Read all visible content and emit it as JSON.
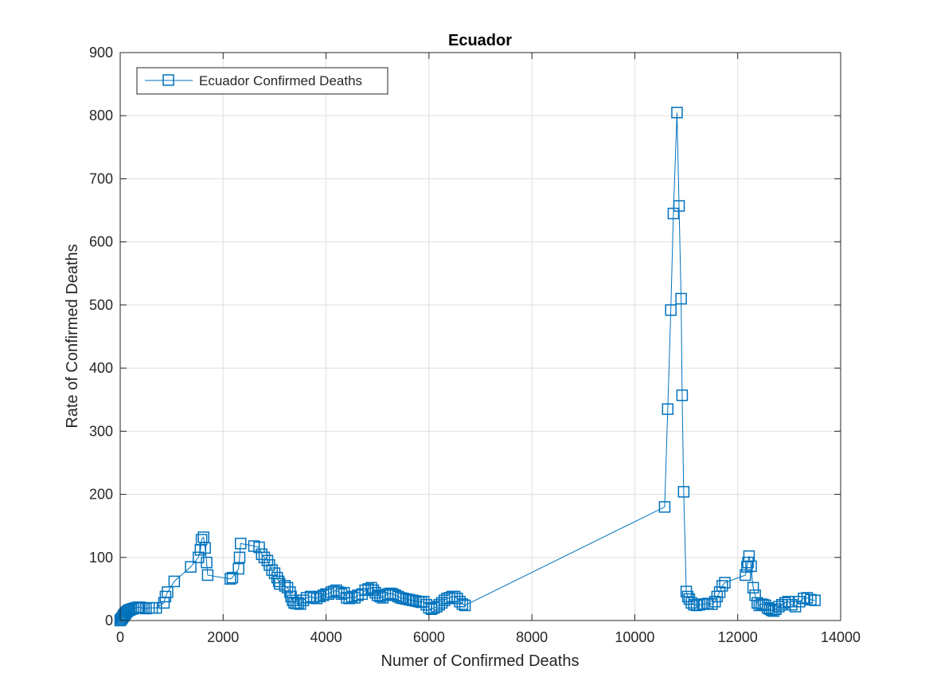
{
  "chart_data": {
    "type": "line",
    "title": "Ecuador",
    "xlabel": "Numer of Confirmed Deaths",
    "ylabel": "Rate of Confirmed Deaths",
    "xlim": [
      0,
      14000
    ],
    "ylim": [
      0,
      900
    ],
    "xticks": [
      0,
      2000,
      4000,
      6000,
      8000,
      10000,
      12000,
      14000
    ],
    "yticks": [
      0,
      100,
      200,
      300,
      400,
      500,
      600,
      700,
      800,
      900
    ],
    "xtick_labels": [
      "0",
      "2000",
      "4000",
      "6000",
      "8000",
      "10000",
      "12000",
      "14000"
    ],
    "ytick_labels": [
      "0",
      "100",
      "200",
      "300",
      "400",
      "500",
      "600",
      "700",
      "800",
      "900"
    ],
    "grid": true,
    "legend_position": "top-left",
    "series": [
      {
        "name": "Ecuador Confirmed Deaths",
        "color": "#0072BD",
        "marker": "square",
        "points": [
          [
            0,
            0
          ],
          [
            15,
            2
          ],
          [
            30,
            3
          ],
          [
            45,
            5
          ],
          [
            60,
            7
          ],
          [
            75,
            9
          ],
          [
            90,
            10
          ],
          [
            110,
            12
          ],
          [
            130,
            14
          ],
          [
            160,
            16
          ],
          [
            190,
            17
          ],
          [
            220,
            18
          ],
          [
            260,
            19
          ],
          [
            300,
            20
          ],
          [
            340,
            21
          ],
          [
            380,
            21
          ],
          [
            420,
            20
          ],
          [
            460,
            20
          ],
          [
            500,
            19
          ],
          [
            560,
            20
          ],
          [
            620,
            20
          ],
          [
            700,
            20
          ],
          [
            850,
            28
          ],
          [
            880,
            38
          ],
          [
            920,
            45
          ],
          [
            1050,
            62
          ],
          [
            1370,
            85
          ],
          [
            1520,
            100
          ],
          [
            1560,
            112
          ],
          [
            1580,
            128
          ],
          [
            1620,
            132
          ],
          [
            1650,
            115
          ],
          [
            1680,
            92
          ],
          [
            1700,
            72
          ],
          [
            2140,
            66
          ],
          [
            2180,
            68
          ],
          [
            2300,
            82
          ],
          [
            2320,
            100
          ],
          [
            2340,
            122
          ],
          [
            2600,
            118
          ],
          [
            2700,
            116
          ],
          [
            2750,
            105
          ],
          [
            2800,
            100
          ],
          [
            2860,
            95
          ],
          [
            2900,
            88
          ],
          [
            2950,
            80
          ],
          [
            3000,
            75
          ],
          [
            3050,
            68
          ],
          [
            3080,
            62
          ],
          [
            3100,
            58
          ],
          [
            3200,
            55
          ],
          [
            3250,
            52
          ],
          [
            3300,
            45
          ],
          [
            3320,
            38
          ],
          [
            3350,
            32
          ],
          [
            3380,
            28
          ],
          [
            3420,
            27
          ],
          [
            3460,
            28
          ],
          [
            3500,
            26
          ],
          [
            3560,
            32
          ],
          [
            3620,
            36
          ],
          [
            3700,
            38
          ],
          [
            3760,
            36
          ],
          [
            3820,
            35
          ],
          [
            3880,
            38
          ],
          [
            3950,
            40
          ],
          [
            4000,
            42
          ],
          [
            4050,
            42
          ],
          [
            4100,
            45
          ],
          [
            4150,
            46
          ],
          [
            4200,
            48
          ],
          [
            4250,
            45
          ],
          [
            4300,
            42
          ],
          [
            4350,
            44
          ],
          [
            4400,
            36
          ],
          [
            4450,
            35
          ],
          [
            4500,
            38
          ],
          [
            4560,
            36
          ],
          [
            4620,
            40
          ],
          [
            4700,
            42
          ],
          [
            4760,
            48
          ],
          [
            4820,
            50
          ],
          [
            4880,
            52
          ],
          [
            4920,
            48
          ],
          [
            4960,
            44
          ],
          [
            5000,
            40
          ],
          [
            5050,
            38
          ],
          [
            5100,
            36
          ],
          [
            5150,
            40
          ],
          [
            5200,
            42
          ],
          [
            5250,
            43
          ],
          [
            5300,
            42
          ],
          [
            5350,
            40
          ],
          [
            5400,
            38
          ],
          [
            5450,
            36
          ],
          [
            5500,
            35
          ],
          [
            5560,
            34
          ],
          [
            5620,
            33
          ],
          [
            5680,
            32
          ],
          [
            5740,
            31
          ],
          [
            5800,
            30
          ],
          [
            5850,
            29
          ],
          [
            5900,
            30
          ],
          [
            5950,
            25
          ],
          [
            6000,
            20
          ],
          [
            6050,
            18
          ],
          [
            6100,
            20
          ],
          [
            6150,
            22
          ],
          [
            6200,
            25
          ],
          [
            6250,
            28
          ],
          [
            6300,
            32
          ],
          [
            6350,
            35
          ],
          [
            6400,
            36
          ],
          [
            6450,
            38
          ],
          [
            6500,
            38
          ],
          [
            6550,
            35
          ],
          [
            6600,
            30
          ],
          [
            6650,
            26
          ],
          [
            6700,
            24
          ],
          [
            10580,
            180
          ],
          [
            10640,
            335
          ],
          [
            10700,
            492
          ],
          [
            10750,
            645
          ],
          [
            10820,
            805
          ],
          [
            10860,
            657
          ],
          [
            10900,
            510
          ],
          [
            10920,
            357
          ],
          [
            10950,
            204
          ],
          [
            11000,
            46
          ],
          [
            11030,
            38
          ],
          [
            11060,
            34
          ],
          [
            11100,
            28
          ],
          [
            11150,
            25
          ],
          [
            11200,
            24
          ],
          [
            11260,
            25
          ],
          [
            11330,
            26
          ],
          [
            11420,
            27
          ],
          [
            11500,
            26
          ],
          [
            11560,
            30
          ],
          [
            11600,
            38
          ],
          [
            11650,
            45
          ],
          [
            11700,
            55
          ],
          [
            11750,
            60
          ],
          [
            12150,
            72
          ],
          [
            12180,
            85
          ],
          [
            12200,
            92
          ],
          [
            12220,
            102
          ],
          [
            12260,
            86
          ],
          [
            12300,
            52
          ],
          [
            12340,
            40
          ],
          [
            12380,
            28
          ],
          [
            12420,
            24
          ],
          [
            12460,
            26
          ],
          [
            12500,
            25
          ],
          [
            12540,
            24
          ],
          [
            12580,
            20
          ],
          [
            12620,
            18
          ],
          [
            12660,
            16
          ],
          [
            12700,
            15
          ],
          [
            12740,
            18
          ],
          [
            12800,
            22
          ],
          [
            12860,
            25
          ],
          [
            12920,
            28
          ],
          [
            12980,
            30
          ],
          [
            13050,
            25
          ],
          [
            13120,
            22
          ],
          [
            13200,
            30
          ],
          [
            13280,
            35
          ],
          [
            13350,
            36
          ],
          [
            13420,
            33
          ],
          [
            13500,
            32
          ]
        ]
      }
    ]
  }
}
